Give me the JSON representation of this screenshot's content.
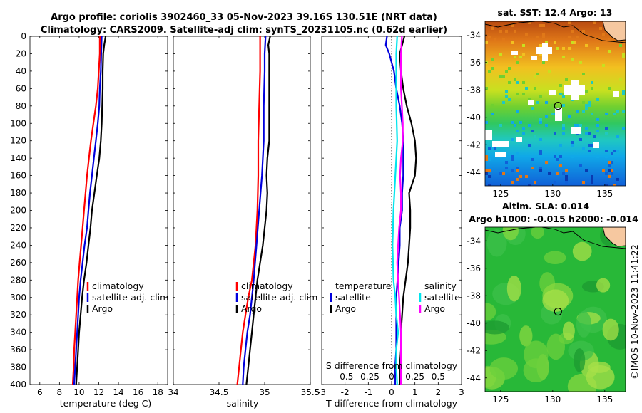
{
  "header": {
    "title_line1": "Argo profile: coriolis 3902460_33 05-Nov-2023 39.16S 130.51E (NRT data)",
    "title_line2": "Climatology: CARS2009. Satellite-adj clim: synTS_20231105.nc (0.62d earlier)"
  },
  "side_stamp": "©IMOS 10-Nov-2023 11:41:22",
  "colors": {
    "climatology": "#ff0000",
    "satellite": "#0000dd",
    "argo": "#000000",
    "cyan": "#00e5ee",
    "magenta": "#ff00ff"
  },
  "chart_data": [
    {
      "id": "temperature",
      "type": "line",
      "xlabel": "temperature (deg C)",
      "ylabel": "",
      "xlim": [
        5,
        19
      ],
      "ylim": [
        0,
        400
      ],
      "y_reversed": true,
      "xticks": [
        "6",
        "8",
        "10",
        "12",
        "14",
        "16",
        "18"
      ],
      "xtick_values": [
        6,
        8,
        10,
        12,
        14,
        16,
        18
      ],
      "yticks": [
        "0",
        "20",
        "40",
        "60",
        "80",
        "100",
        "120",
        "140",
        "160",
        "180",
        "200",
        "220",
        "240",
        "260",
        "280",
        "300",
        "320",
        "340",
        "360",
        "380",
        "400"
      ],
      "legend": [
        "climatology",
        "satellite-adj. clim",
        "Argo"
      ],
      "series": [
        {
          "name": "climatology",
          "color": "#ff0000",
          "depth": [
            0,
            20,
            40,
            60,
            80,
            100,
            120,
            140,
            160,
            180,
            200,
            220,
            240,
            260,
            280,
            300,
            320,
            340,
            360,
            380,
            400
          ],
          "values": [
            12.1,
            12.1,
            12.0,
            11.9,
            11.7,
            11.45,
            11.2,
            11.0,
            10.8,
            10.65,
            10.5,
            10.35,
            10.2,
            10.05,
            9.9,
            9.8,
            9.7,
            9.6,
            9.5,
            9.45,
            9.35
          ]
        },
        {
          "name": "satellite-adj. clim",
          "color": "#0000dd",
          "depth": [
            0,
            20,
            40,
            60,
            80,
            100,
            120,
            140,
            160,
            180,
            200,
            220,
            240,
            260,
            280,
            300,
            320,
            340,
            360,
            380,
            400
          ],
          "values": [
            12.3,
            12.25,
            12.2,
            12.1,
            12.05,
            11.9,
            11.7,
            11.5,
            11.3,
            11.1,
            10.95,
            10.8,
            10.55,
            10.35,
            10.15,
            10.0,
            9.9,
            9.8,
            9.7,
            9.6,
            9.5
          ]
        },
        {
          "name": "Argo",
          "color": "#000000",
          "depth": [
            0,
            10,
            20,
            40,
            60,
            80,
            100,
            120,
            140,
            160,
            180,
            200,
            220,
            240,
            260,
            280,
            300,
            320,
            340,
            360,
            380,
            400
          ],
          "values": [
            12.7,
            12.55,
            12.45,
            12.4,
            12.4,
            12.35,
            12.3,
            12.2,
            12.05,
            11.8,
            11.55,
            11.3,
            11.15,
            10.95,
            10.75,
            10.5,
            10.3,
            10.15,
            10.0,
            9.9,
            9.8,
            9.7
          ]
        }
      ]
    },
    {
      "id": "salinity",
      "type": "line",
      "xlabel": "salinity",
      "ylabel": "",
      "xlim": [
        34,
        35.5
      ],
      "ylim": [
        0,
        400
      ],
      "y_reversed": true,
      "xticks": [
        "34",
        "34.5",
        "35",
        "35.5"
      ],
      "xtick_values": [
        34,
        34.5,
        35,
        35.5
      ],
      "legend": [
        "climatology",
        "satellite-adj. clim",
        "Argo"
      ],
      "series": [
        {
          "name": "climatology",
          "color": "#ff0000",
          "depth": [
            0,
            40,
            80,
            120,
            160,
            200,
            240,
            280,
            300,
            320,
            340,
            360,
            380,
            400
          ],
          "values": [
            34.95,
            34.95,
            34.94,
            34.93,
            34.93,
            34.92,
            34.9,
            34.86,
            34.82,
            34.79,
            34.76,
            34.74,
            34.72,
            34.7
          ]
        },
        {
          "name": "satellite-adj. clim",
          "color": "#0000dd",
          "depth": [
            0,
            20,
            40,
            80,
            120,
            160,
            200,
            240,
            280,
            300,
            320,
            340,
            360,
            380,
            400
          ],
          "values": [
            35.01,
            35.0,
            35.0,
            34.99,
            34.99,
            34.97,
            34.94,
            34.91,
            34.88,
            34.86,
            34.84,
            34.81,
            34.79,
            34.77,
            34.76
          ]
        },
        {
          "name": "Argo",
          "color": "#000000",
          "depth": [
            0,
            10,
            20,
            40,
            60,
            80,
            100,
            120,
            140,
            160,
            180,
            200,
            220,
            240,
            260,
            280,
            300,
            320,
            340,
            360,
            380,
            400
          ],
          "values": [
            35.06,
            35.04,
            35.05,
            35.05,
            35.05,
            35.05,
            35.05,
            35.05,
            35.03,
            35.02,
            35.03,
            35.02,
            35.0,
            34.98,
            34.95,
            34.92,
            34.9,
            34.88,
            34.86,
            34.84,
            34.82,
            34.8
          ]
        }
      ]
    },
    {
      "id": "difference",
      "type": "line",
      "xlabel": "T difference from climatology",
      "xlabel_top": "S difference from climatology",
      "xlim": [
        -3,
        3
      ],
      "xlim_S": [
        -0.75,
        0.75
      ],
      "ylim": [
        0,
        400
      ],
      "y_reversed": true,
      "xticks": [
        "-2",
        "-1",
        "0",
        "1",
        "2"
      ],
      "xtick_values": [
        -2,
        -1,
        0,
        1,
        2
      ],
      "xticks_top": [
        "-0.5",
        "-0.25",
        "0",
        "0.25",
        "0.5"
      ],
      "xtick_top_values": [
        -0.5,
        -0.25,
        0,
        0.25,
        0.5
      ],
      "corner_labels": [
        "-3",
        "3"
      ],
      "legend_T": {
        "title": "temperature",
        "entries": [
          "satellite",
          "Argo"
        ]
      },
      "legend_S": {
        "title": "salinity",
        "entries": [
          "satellite",
          "Argo"
        ]
      },
      "series": [
        {
          "name": "T satellite",
          "color": "#0000dd",
          "depth": [
            0,
            10,
            20,
            40,
            60,
            80,
            100,
            120,
            140,
            160,
            180,
            200,
            220,
            240,
            260,
            280,
            300,
            320,
            340,
            360,
            380,
            400
          ],
          "values": [
            -0.2,
            -0.25,
            -0.1,
            0.1,
            0.2,
            0.35,
            0.45,
            0.5,
            0.5,
            0.5,
            0.45,
            0.45,
            0.35,
            0.35,
            0.3,
            0.25,
            0.2,
            0.2,
            0.2,
            0.2,
            0.15,
            0.15
          ]
        },
        {
          "name": "T Argo",
          "color": "#000000",
          "depth": [
            0,
            10,
            20,
            40,
            60,
            80,
            100,
            120,
            140,
            160,
            180,
            200,
            220,
            240,
            260,
            280,
            300,
            320,
            340,
            360,
            380,
            400
          ],
          "values": [
            0.55,
            0.45,
            0.35,
            0.4,
            0.5,
            0.65,
            0.85,
            1.0,
            1.05,
            1.0,
            0.75,
            0.8,
            0.8,
            0.75,
            0.7,
            0.6,
            0.5,
            0.45,
            0.4,
            0.4,
            0.35,
            0.35
          ]
        },
        {
          "name": "S satellite",
          "color": "#00e5ee",
          "depth": [
            0,
            20,
            40,
            80,
            120,
            160,
            200,
            240,
            280,
            300,
            320,
            340,
            360,
            380,
            400
          ],
          "values": [
            0.06,
            0.05,
            0.05,
            0.05,
            0.06,
            0.04,
            0.02,
            0.01,
            0.02,
            0.04,
            0.05,
            0.07,
            0.05,
            0.05,
            0.06
          ]
        },
        {
          "name": "S Argo",
          "color": "#ff00ff",
          "depth": [
            0,
            20,
            40,
            60,
            80,
            100,
            120,
            140,
            160,
            180,
            200,
            220,
            240,
            260,
            280,
            300,
            320,
            340,
            360,
            380,
            400
          ],
          "values": [
            0.11,
            0.1,
            0.1,
            0.1,
            0.11,
            0.12,
            0.12,
            0.1,
            0.09,
            0.1,
            0.1,
            0.08,
            0.07,
            0.06,
            0.07,
            0.08,
            0.09,
            0.1,
            0.1,
            0.1,
            0.1
          ]
        }
      ]
    },
    {
      "id": "sst_map",
      "type": "heatmap",
      "title": "sat. SST: 12.4 Argo: 13",
      "xticks": [
        "125",
        "130",
        "135"
      ],
      "xtick_values": [
        125,
        130,
        135
      ],
      "yticks": [
        "-34",
        "-36",
        "-38",
        "-40",
        "-42",
        "-44"
      ],
      "ytick_values": [
        -34,
        -36,
        -38,
        -40,
        -42,
        -44
      ],
      "xlim": [
        123.5,
        137
      ],
      "ylim": [
        -45,
        -33
      ],
      "argo_position": [
        130.51,
        -39.16
      ]
    },
    {
      "id": "sla_map",
      "type": "heatmap",
      "title_line1": "Altim. SLA: 0.014",
      "title_line2": "Argo h1000: -0.015 h2000: -0.014",
      "xticks": [
        "125",
        "130",
        "135"
      ],
      "xtick_values": [
        125,
        130,
        135
      ],
      "yticks": [
        "-34",
        "-36",
        "-38",
        "-40",
        "-42",
        "-44"
      ],
      "ytick_values": [
        -34,
        -36,
        -38,
        -40,
        -42,
        -44
      ],
      "xlim": [
        123.5,
        137
      ],
      "ylim": [
        -45,
        -33
      ],
      "argo_position": [
        130.51,
        -39.16
      ]
    }
  ]
}
